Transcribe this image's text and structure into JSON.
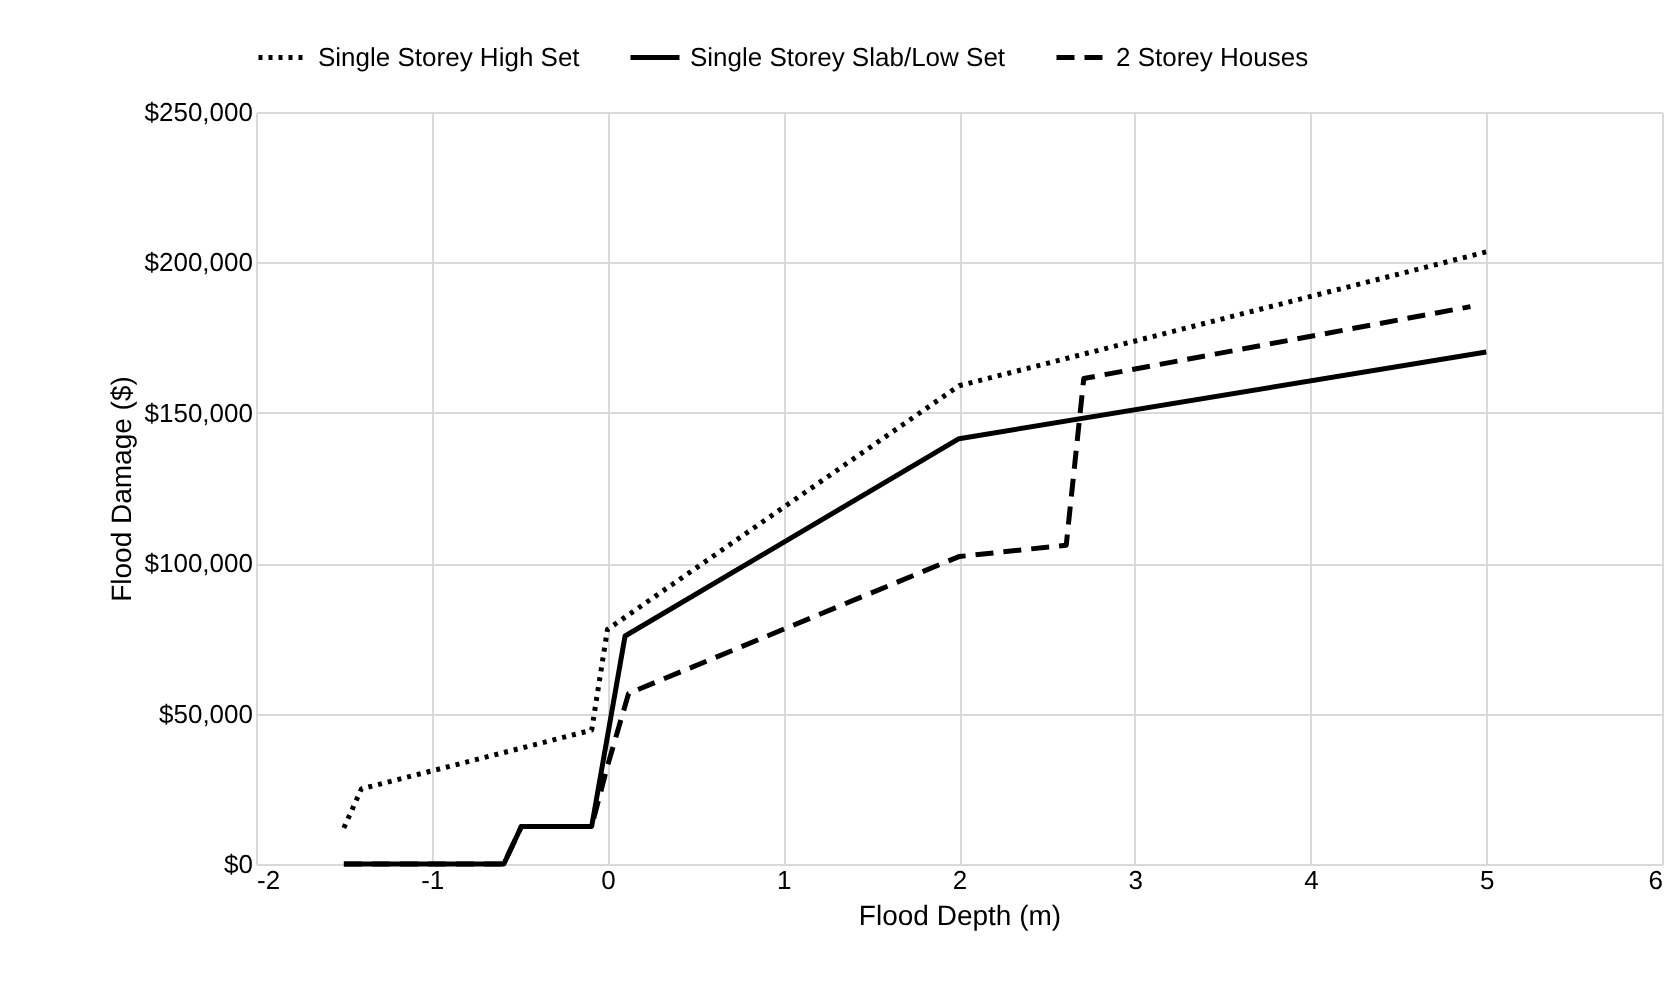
{
  "chart_data": {
    "type": "line",
    "xlabel": "Flood Depth (m)",
    "ylabel": "Flood Damage ($)",
    "xlim": [
      -2,
      6
    ],
    "xticks": [
      -2,
      -1,
      0,
      1,
      2,
      3,
      4,
      5,
      6
    ],
    "ylim": [
      0,
      250000
    ],
    "yticks": [
      {
        "value": 0,
        "label": "$0"
      },
      {
        "value": 50000,
        "label": "$50,000"
      },
      {
        "value": 100000,
        "label": "$100,000"
      },
      {
        "value": 150000,
        "label": "$150,000"
      },
      {
        "value": 200000,
        "label": "$200,000"
      },
      {
        "value": 250000,
        "label": "$250,000"
      }
    ],
    "grid": true,
    "legend": "top",
    "marker": "none",
    "series": [
      {
        "name": "Single Storey High Set",
        "color": "#000000",
        "line_style": "dotted",
        "x": [
          -1.5,
          -1.4,
          -0.09,
          0.0,
          2,
          5
        ],
        "values": [
          12000,
          25000,
          44500,
          78000,
          159000,
          203500
        ]
      },
      {
        "name": "Single Storey Slab/Low Set",
        "color": "#000000",
        "line_style": "solid",
        "x": [
          -1.5,
          -0.59,
          -0.49,
          -0.09,
          0.1,
          2,
          5
        ],
        "values": [
          0,
          0,
          12500,
          12500,
          75800,
          141400,
          170200
        ]
      },
      {
        "name": "2 Storey Houses",
        "color": "#000000",
        "line_style": "dashed",
        "x": [
          -1.5,
          -0.59,
          -0.49,
          -0.09,
          0.0,
          0.12,
          2,
          2.61,
          2.71,
          4.91
        ],
        "values": [
          0,
          0,
          12500,
          12500,
          32600,
          56700,
          102200,
          106000,
          161400,
          185300
        ]
      }
    ]
  }
}
